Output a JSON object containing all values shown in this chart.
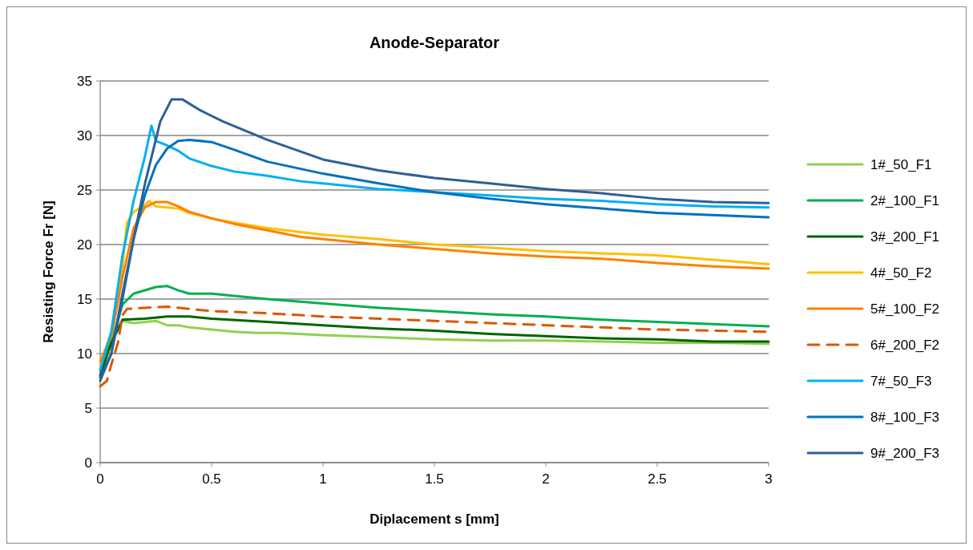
{
  "chart_data": {
    "type": "line",
    "title": "Anode-Separator",
    "xlabel": "Diplacement s [mm]",
    "ylabel": "Resisting Force Fr [N]",
    "xlim": [
      0,
      3
    ],
    "xticks": [
      0,
      0.5,
      1,
      1.5,
      2,
      2.5,
      3
    ],
    "ylim": [
      0,
      35
    ],
    "yticks": [
      0,
      5,
      10,
      15,
      20,
      25,
      30,
      35
    ],
    "grid": "y",
    "legend": "right",
    "marker": "none",
    "series": [
      {
        "name": "1#_50_F1",
        "color": "#92d050",
        "x": [
          0,
          0.05,
          0.1,
          0.15,
          0.25,
          0.3,
          0.35,
          0.4,
          0.5,
          0.6,
          0.7,
          0.8,
          1,
          1.25,
          1.5,
          1.75,
          2,
          2.25,
          2.5,
          2.75,
          3
        ],
        "values": [
          8.5,
          11,
          13,
          12.8,
          13,
          12.6,
          12.6,
          12.4,
          12.2,
          12,
          11.9,
          11.9,
          11.7,
          11.5,
          11.3,
          11.2,
          11.2,
          11.1,
          11,
          11,
          10.9
        ]
      },
      {
        "name": "2#_100_F1",
        "color": "#00b050",
        "x": [
          0,
          0.05,
          0.1,
          0.15,
          0.25,
          0.3,
          0.35,
          0.4,
          0.5,
          0.6,
          0.75,
          1,
          1.25,
          1.5,
          1.75,
          2,
          2.25,
          2.5,
          2.75,
          3
        ],
        "values": [
          8.5,
          11,
          14.5,
          15.5,
          16.1,
          16.2,
          15.8,
          15.5,
          15.5,
          15.3,
          15,
          14.6,
          14.2,
          13.9,
          13.6,
          13.4,
          13.1,
          12.9,
          12.7,
          12.5
        ]
      },
      {
        "name": "3#_200_F1",
        "color": "#006400",
        "x": [
          0,
          0.05,
          0.1,
          0.2,
          0.3,
          0.4,
          0.5,
          0.75,
          1,
          1.25,
          1.5,
          1.75,
          2,
          2.25,
          2.5,
          2.75,
          3
        ],
        "values": [
          8,
          11,
          13.1,
          13.2,
          13.4,
          13.4,
          13.2,
          12.9,
          12.6,
          12.3,
          12.1,
          11.8,
          11.6,
          11.4,
          11.3,
          11.1,
          11.1
        ]
      },
      {
        "name": "4#_50_F2",
        "color": "#ffc000",
        "x": [
          0,
          0.05,
          0.1,
          0.12,
          0.15,
          0.2,
          0.22,
          0.25,
          0.3,
          0.35,
          0.4,
          0.5,
          0.6,
          0.75,
          1,
          1.25,
          1.5,
          1.75,
          2,
          2.25,
          2.5,
          2.75,
          3
        ],
        "values": [
          9,
          12,
          18,
          22,
          23,
          23.6,
          24,
          23.5,
          23.4,
          23.3,
          22.9,
          22.4,
          22,
          21.5,
          20.9,
          20.5,
          20,
          19.7,
          19.4,
          19.2,
          19,
          18.6,
          18.2
        ]
      },
      {
        "name": "5#_100_F2",
        "color": "#ff8000",
        "x": [
          0,
          0.05,
          0.1,
          0.15,
          0.2,
          0.25,
          0.3,
          0.35,
          0.4,
          0.5,
          0.6,
          0.75,
          0.9,
          1,
          1.25,
          1.5,
          1.75,
          2,
          2.25,
          2.5,
          2.75,
          3
        ],
        "values": [
          9.3,
          11.5,
          17,
          21.5,
          23.4,
          23.9,
          23.9,
          23.5,
          23,
          22.4,
          21.9,
          21.3,
          20.7,
          20.5,
          20,
          19.6,
          19.2,
          18.9,
          18.7,
          18.3,
          18,
          17.8
        ]
      },
      {
        "name": "6#_200_F2",
        "color": "#d95900",
        "line_style": "dashed",
        "x": [
          0,
          0.03,
          0.05,
          0.08,
          0.1,
          0.12,
          0.2,
          0.3,
          0.4,
          0.5,
          0.75,
          1,
          1.25,
          1.5,
          1.75,
          2,
          2.25,
          2.5,
          2.75,
          3
        ],
        "values": [
          7,
          7.5,
          9,
          11,
          13.5,
          14.1,
          14.2,
          14.3,
          14.1,
          13.9,
          13.7,
          13.4,
          13.2,
          13,
          12.8,
          12.6,
          12.4,
          12.2,
          12.1,
          12
        ]
      },
      {
        "name": "7#_50_F3",
        "color": "#00b0f0",
        "x": [
          0,
          0.05,
          0.1,
          0.15,
          0.2,
          0.23,
          0.25,
          0.3,
          0.35,
          0.4,
          0.5,
          0.6,
          0.75,
          0.9,
          1,
          1.25,
          1.5,
          1.75,
          2,
          2.25,
          2.5,
          2.75,
          3
        ],
        "values": [
          8.5,
          12,
          19,
          24,
          28,
          30.9,
          29.5,
          29.1,
          28.6,
          27.9,
          27.2,
          26.7,
          26.3,
          25.8,
          25.6,
          25.1,
          24.8,
          24.5,
          24.2,
          24,
          23.7,
          23.5,
          23.4
        ]
      },
      {
        "name": "8#_100_F3",
        "color": "#0070c0",
        "x": [
          0,
          0.05,
          0.1,
          0.15,
          0.2,
          0.25,
          0.3,
          0.35,
          0.4,
          0.5,
          0.6,
          0.75,
          1,
          1.25,
          1.5,
          1.75,
          2,
          2.25,
          2.5,
          2.75,
          3
        ],
        "values": [
          7.8,
          10,
          15,
          20.5,
          24.5,
          27.3,
          28.8,
          29.5,
          29.6,
          29.4,
          28.7,
          27.6,
          26.5,
          25.6,
          24.8,
          24.2,
          23.7,
          23.3,
          22.9,
          22.7,
          22.5
        ]
      },
      {
        "name": "9#_200_F3",
        "color": "#2e5f96",
        "x": [
          0,
          0.05,
          0.1,
          0.15,
          0.2,
          0.27,
          0.32,
          0.37,
          0.45,
          0.55,
          0.75,
          1,
          1.25,
          1.5,
          1.75,
          2,
          2.25,
          2.5,
          2.75,
          3
        ],
        "values": [
          7.5,
          10,
          15.5,
          20.5,
          25.5,
          31.3,
          33.3,
          33.3,
          32.3,
          31.3,
          29.6,
          27.8,
          26.8,
          26.1,
          25.6,
          25.1,
          24.7,
          24.2,
          23.9,
          23.8
        ]
      }
    ]
  }
}
